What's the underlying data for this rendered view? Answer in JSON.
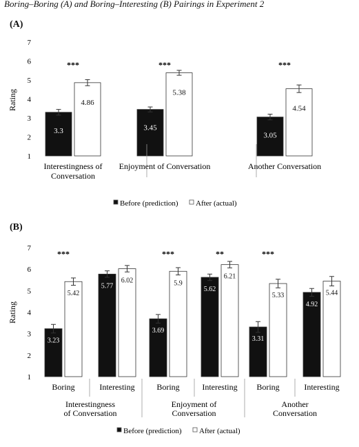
{
  "figure": {
    "caption": "Boring–Boring (A) and Boring–Interesting (B) Pairings in Experiment 2"
  },
  "chart_data": [
    {
      "panel": "(A)",
      "type": "bar",
      "ylabel": "Rating",
      "ylim": [
        1,
        7
      ],
      "yticks": [
        1,
        2,
        3,
        4,
        5,
        6,
        7
      ],
      "grid": false,
      "legend_position": "bottom",
      "categories": [
        "Interestingness of\nConversation",
        "Enjoyment of Conversation",
        "Another Conversation"
      ],
      "series": [
        {
          "name": "Before (prediction)",
          "color": "#111111",
          "values": [
            3.3,
            3.45,
            3.05
          ],
          "errors": [
            0.15,
            0.13,
            0.15
          ]
        },
        {
          "name": "After (actual)",
          "color": "#ffffff",
          "values": [
            4.86,
            5.38,
            4.54
          ],
          "errors": [
            0.16,
            0.13,
            0.2
          ]
        }
      ],
      "significance": [
        "***",
        "***",
        "***"
      ]
    },
    {
      "panel": "(B)",
      "type": "bar",
      "ylabel": "Rating",
      "ylim": [
        1,
        7
      ],
      "yticks": [
        1,
        2,
        3,
        4,
        5,
        6,
        7
      ],
      "grid": false,
      "legend_position": "bottom",
      "groups": [
        {
          "label": "Interestingness\nof Conversation",
          "subcategories": [
            "Boring",
            "Interesting"
          ]
        },
        {
          "label": "Enjoyment of\nConversation",
          "subcategories": [
            "Boring",
            "Interesting"
          ]
        },
        {
          "label": "Another\nConversation",
          "subcategories": [
            "Boring",
            "Interesting"
          ]
        }
      ],
      "bars": [
        {
          "before": 3.23,
          "after": 5.42,
          "before_err": 0.2,
          "after_err": 0.17,
          "sig": "***"
        },
        {
          "before": 5.77,
          "after": 6.02,
          "before_err": 0.15,
          "after_err": 0.15,
          "sig": ""
        },
        {
          "before": 3.69,
          "after": 5.9,
          "before_err": 0.2,
          "after_err": 0.17,
          "sig": "***"
        },
        {
          "before": 5.62,
          "after": 6.21,
          "before_err": 0.15,
          "after_err": 0.15,
          "sig": "**"
        },
        {
          "before": 3.31,
          "after": 5.33,
          "before_err": 0.25,
          "after_err": 0.2,
          "sig": "***"
        },
        {
          "before": 4.92,
          "after": 5.44,
          "before_err": 0.18,
          "after_err": 0.22,
          "sig": ""
        }
      ],
      "series": [
        {
          "name": "Before (prediction)",
          "color": "#111111"
        },
        {
          "name": "After (actual)",
          "color": "#ffffff"
        }
      ]
    }
  ]
}
